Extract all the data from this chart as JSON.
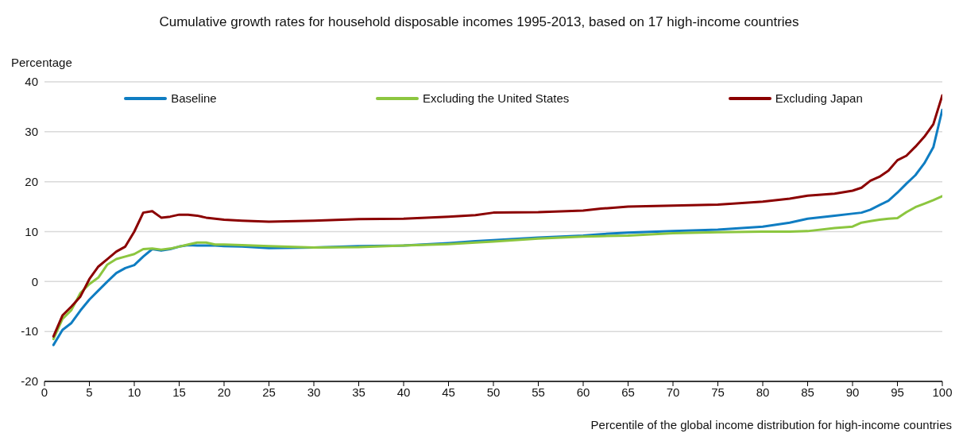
{
  "chart_data": {
    "type": "line",
    "title": "Cumulative growth rates for household disposable incomes 1995-2013, based on 17 high-income countries",
    "ylabel": "Percentage",
    "xlabel": "Percentile of the global income distribution for high-income countries",
    "x": [
      1,
      2,
      3,
      4,
      5,
      6,
      7,
      8,
      9,
      10,
      11,
      12,
      13,
      14,
      15,
      16,
      17,
      18,
      19,
      20,
      22,
      25,
      30,
      35,
      40,
      45,
      48,
      50,
      55,
      60,
      62,
      65,
      70,
      75,
      80,
      83,
      85,
      88,
      90,
      91,
      92,
      93,
      94,
      95,
      96,
      97,
      98,
      99,
      100
    ],
    "series": [
      {
        "name": "Baseline",
        "color": "#0f7dc2",
        "values": [
          -12.7,
          -9.7,
          -8.3,
          -5.8,
          -3.6,
          -1.8,
          0,
          1.7,
          2.7,
          3.3,
          5,
          6.5,
          6.2,
          6.5,
          7,
          7.3,
          7.2,
          7.2,
          7.2,
          7.1,
          7,
          6.7,
          6.8,
          7.1,
          7.2,
          7.7,
          8.1,
          8.3,
          8.8,
          9.2,
          9.5,
          9.8,
          10.1,
          10.4,
          11,
          11.8,
          12.6,
          13.2,
          13.6,
          13.8,
          14.4,
          15.3,
          16.2,
          17.8,
          19.6,
          21.3,
          23.7,
          26.9,
          34.4
        ]
      },
      {
        "name": "Excluding the United States",
        "color": "#8cc63f",
        "values": [
          -11.5,
          -7.5,
          -5.7,
          -2.3,
          -0.5,
          0.8,
          3.4,
          4.5,
          5,
          5.5,
          6.5,
          6.6,
          6.4,
          6.6,
          7,
          7.4,
          7.8,
          7.8,
          7.4,
          7.4,
          7.3,
          7.1,
          6.8,
          6.9,
          7.2,
          7.5,
          7.8,
          8,
          8.6,
          9,
          9.1,
          9.2,
          9.7,
          9.9,
          10,
          10,
          10.1,
          10.7,
          11,
          11.8,
          12.1,
          12.4,
          12.6,
          12.7,
          13.9,
          14.9,
          15.6,
          16.3,
          17.1
        ]
      },
      {
        "name": "Excluding Japan",
        "color": "#8b0000",
        "values": [
          -11,
          -6.8,
          -5,
          -3,
          0.5,
          3,
          4.5,
          6,
          7,
          10,
          13.8,
          14.1,
          12.8,
          13,
          13.4,
          13.4,
          13.2,
          12.8,
          12.6,
          12.4,
          12.2,
          12,
          12.2,
          12.5,
          12.6,
          13,
          13.3,
          13.8,
          13.9,
          14.2,
          14.6,
          15,
          15.2,
          15.4,
          16,
          16.6,
          17.2,
          17.6,
          18.2,
          18.8,
          20.2,
          21,
          22.2,
          24.3,
          25.2,
          27,
          29,
          31.5,
          37.3
        ]
      }
    ],
    "xlim": [
      0,
      100
    ],
    "xticks": [
      0,
      5,
      10,
      15,
      20,
      25,
      30,
      35,
      40,
      45,
      50,
      55,
      60,
      65,
      70,
      75,
      80,
      85,
      90,
      95,
      100
    ],
    "ylim": [
      -20,
      40
    ],
    "yticks": [
      -20,
      -10,
      0,
      10,
      20,
      30,
      40
    ],
    "grid": "y",
    "legend": "top",
    "marker": "none",
    "line_style": "solid"
  }
}
